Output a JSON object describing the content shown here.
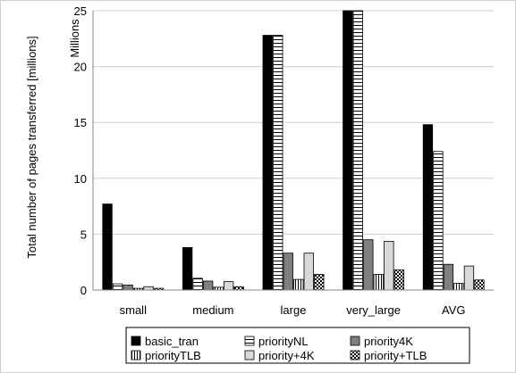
{
  "chart_data": {
    "type": "bar",
    "title": "",
    "xlabel": "",
    "ylabel": "Total number of pages transferred [millions]",
    "display_unit": "Millions",
    "ylim": [
      0,
      25
    ],
    "yticks": [
      0,
      5,
      10,
      15,
      20,
      25
    ],
    "grid": true,
    "legend_position": "bottom",
    "categories": [
      "small",
      "medium",
      "large",
      "very_large",
      "AVG"
    ],
    "series": [
      {
        "name": "basic_tran",
        "pattern": "solid-black",
        "values": [
          7.7,
          3.8,
          22.8,
          25.0,
          14.8
        ]
      },
      {
        "name": "priorityNL",
        "pattern": "horizontal-lines",
        "values": [
          0.55,
          1.05,
          22.8,
          25.0,
          12.4
        ]
      },
      {
        "name": "priority4K",
        "pattern": "dark-gray",
        "values": [
          0.45,
          0.8,
          3.3,
          4.5,
          2.3
        ]
      },
      {
        "name": "priorityTLB",
        "pattern": "vertical-lines",
        "values": [
          0.15,
          0.25,
          0.95,
          1.4,
          0.6
        ]
      },
      {
        "name": "priority+4K",
        "pattern": "light-gray",
        "values": [
          0.3,
          0.75,
          3.3,
          4.35,
          2.15
        ]
      },
      {
        "name": "priority+TLB",
        "pattern": "checker",
        "values": [
          0.15,
          0.3,
          1.4,
          1.8,
          0.9
        ]
      }
    ]
  }
}
